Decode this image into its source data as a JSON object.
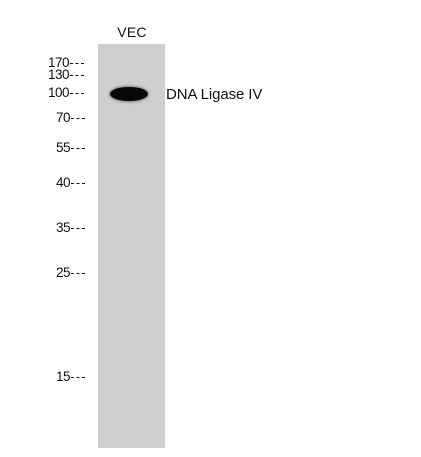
{
  "lane_label": "VEC",
  "band_label": "DNA Ligase IV",
  "markers": [
    {
      "label": "170"
    },
    {
      "label": "130"
    },
    {
      "label": "100"
    },
    {
      "label": "70"
    },
    {
      "label": "55"
    },
    {
      "label": "40"
    },
    {
      "label": "35"
    },
    {
      "label": "25"
    },
    {
      "label": "15"
    }
  ],
  "colors": {
    "lane": "#cfcfcf",
    "band": "#080808",
    "text": "#111111",
    "background": "#ffffff"
  }
}
